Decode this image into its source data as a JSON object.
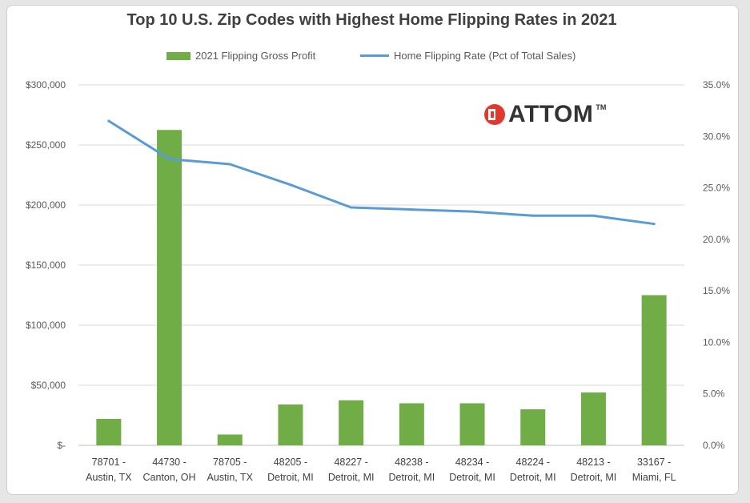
{
  "chart_data": {
    "type": "bar",
    "title": "Top 10 U.S. Zip Codes with Highest Home Flipping Rates in 2021",
    "categories": [
      [
        "78701 -",
        "Austin, TX"
      ],
      [
        "44730 -",
        "Canton, OH"
      ],
      [
        "78705 -",
        "Austin, TX"
      ],
      [
        "48205 -",
        "Detroit, MI"
      ],
      [
        "48227 -",
        "Detroit, MI"
      ],
      [
        "48238 -",
        "Detroit, MI"
      ],
      [
        "48234 -",
        "Detroit, MI"
      ],
      [
        "48224 -",
        "Detroit, MI"
      ],
      [
        "48213 -",
        "Detroit, MI"
      ],
      [
        "33167 -",
        "Miami, FL"
      ]
    ],
    "series": [
      {
        "name": "2021 Flipping Gross Profit",
        "type": "bar",
        "axis": "left",
        "color": "#70ad47",
        "values": [
          22000,
          262500,
          9000,
          34000,
          37500,
          35000,
          35000,
          30000,
          44000,
          125000
        ]
      },
      {
        "name": "Home Flipping Rate (Pct of Total Sales)",
        "type": "line",
        "axis": "right",
        "color": "#5b9bd5",
        "values": [
          31.5,
          27.8,
          27.3,
          25.3,
          23.1,
          22.9,
          22.7,
          22.3,
          22.3,
          21.5
        ]
      }
    ],
    "y_left": {
      "min": 0,
      "max": 300000,
      "ticks": [
        0,
        50000,
        100000,
        150000,
        200000,
        250000,
        300000
      ],
      "tick_labels": [
        "$-",
        "$50,000",
        "$100,000",
        "$150,000",
        "$200,000",
        "$250,000",
        "$300,000"
      ]
    },
    "y_right": {
      "min": 0,
      "max": 35,
      "ticks": [
        0,
        5,
        10,
        15,
        20,
        25,
        30,
        35
      ],
      "tick_labels": [
        "0.0%",
        "5.0%",
        "10.0%",
        "15.0%",
        "20.0%",
        "25.0%",
        "30.0%",
        "35.0%"
      ]
    },
    "grid": true,
    "legend_position": "top",
    "logo": "ATTOM",
    "logo_mark": "TM"
  }
}
